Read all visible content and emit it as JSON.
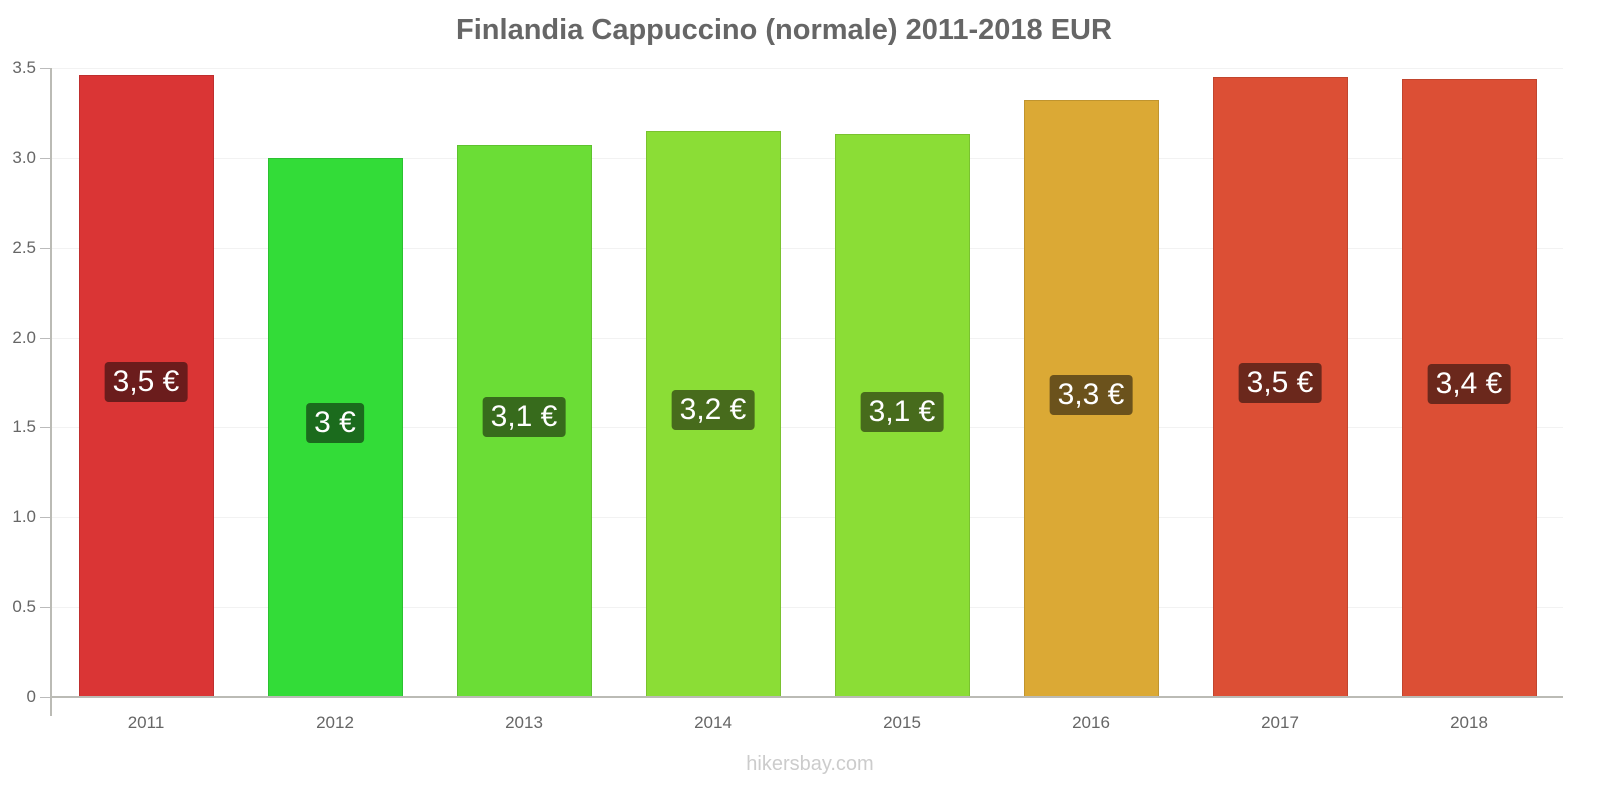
{
  "chart_data": {
    "type": "bar",
    "title": "Finlandia Cappuccino (normale) 2011-2018 EUR",
    "xlabel": "",
    "ylabel": "",
    "ylim": [
      0,
      3.5
    ],
    "yticks": [
      "0",
      "0.5",
      "1.0",
      "1.5",
      "2.0",
      "2.5",
      "3.0",
      "3.5"
    ],
    "grid": true,
    "legend": null,
    "categories": [
      "2011",
      "2012",
      "2013",
      "2014",
      "2015",
      "2016",
      "2017",
      "2018"
    ],
    "values": [
      3.46,
      3.0,
      3.07,
      3.15,
      3.13,
      3.32,
      3.45,
      3.44
    ],
    "data_labels": [
      "3,5 €",
      "3 €",
      "3,1 €",
      "3,2 €",
      "3,1 €",
      "3,3 €",
      "3,5 €",
      "3,4 €"
    ],
    "bar_colors": [
      "#da3535",
      "#33dc38",
      "#6bdd36",
      "#8bdd36",
      "#8bdd36",
      "#dba935",
      "#dc4f35",
      "#dc4f35"
    ],
    "label_colors": [
      "#6b1c1c",
      "#1b6b1d",
      "#376b1c",
      "#476b1c",
      "#476b1c",
      "#6b521c",
      "#6b281c",
      "#6b281c"
    ]
  },
  "watermark": "hikersbay.com"
}
